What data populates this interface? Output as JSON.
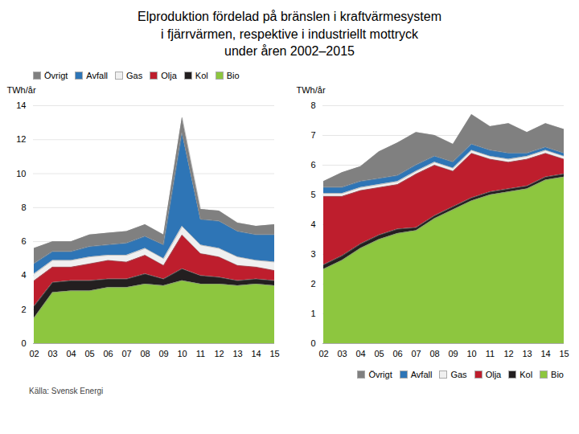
{
  "chart_data": [
    {
      "type": "area",
      "title": "Elproduktion fördelad på bränslen i kraftvärmesystem\ni fjärrvärmen, respektive i industriellt mottryck\nunder åren 2002–2015",
      "annotations": [
        "Källa: Svensk Energi"
      ],
      "y_label": "TWh/år",
      "categories": [
        "02",
        "03",
        "04",
        "05",
        "06",
        "07",
        "08",
        "09",
        "10",
        "11",
        "12",
        "13",
        "14",
        "15"
      ],
      "series": [
        {
          "name": "Bio",
          "color": "#8dc63f",
          "values": [
            1.5,
            3.0,
            3.1,
            3.1,
            3.3,
            3.3,
            3.5,
            3.4,
            3.7,
            3.5,
            3.5,
            3.4,
            3.5,
            3.4
          ]
        },
        {
          "name": "Kol",
          "color": "#231f20",
          "values": [
            0.7,
            0.6,
            0.6,
            0.6,
            0.5,
            0.5,
            0.6,
            0.4,
            0.7,
            0.5,
            0.4,
            0.3,
            0.3,
            0.3
          ]
        },
        {
          "name": "Olja",
          "color": "#be1e2d",
          "values": [
            1.5,
            0.9,
            0.8,
            1.0,
            1.1,
            1.0,
            1.1,
            0.8,
            2.0,
            1.3,
            1.2,
            0.9,
            0.7,
            0.6
          ]
        },
        {
          "name": "Gas",
          "color": "#f0f0f0",
          "values": [
            0.4,
            0.4,
            0.4,
            0.4,
            0.3,
            0.4,
            0.4,
            0.4,
            0.5,
            0.5,
            0.5,
            0.5,
            0.4,
            0.5
          ]
        },
        {
          "name": "Avfall",
          "color": "#2e75b6",
          "values": [
            0.6,
            0.5,
            0.5,
            0.6,
            0.6,
            0.7,
            0.7,
            0.8,
            5.5,
            1.5,
            1.6,
            1.5,
            1.5,
            1.6
          ]
        },
        {
          "name": "Övrigt",
          "color": "#808080",
          "values": [
            0.9,
            0.6,
            0.6,
            0.7,
            0.7,
            0.7,
            0.7,
            0.6,
            0.9,
            0.6,
            0.6,
            0.5,
            0.5,
            0.6
          ]
        }
      ],
      "ylim": [
        0,
        14
      ],
      "yticks": [
        0,
        2,
        4,
        6,
        8,
        10,
        12,
        14
      ],
      "stacked": true,
      "grid": "y",
      "legend": "upper left"
    },
    {
      "type": "area",
      "y_label": "TWh/år",
      "categories": [
        "02",
        "03",
        "04",
        "05",
        "06",
        "07",
        "08",
        "09",
        "10",
        "11",
        "12",
        "13",
        "14",
        "15"
      ],
      "series": [
        {
          "name": "Bio",
          "color": "#8dc63f",
          "values": [
            2.5,
            2.8,
            3.2,
            3.5,
            3.7,
            3.8,
            4.2,
            4.5,
            4.8,
            5.0,
            5.1,
            5.2,
            5.5,
            5.6
          ]
        },
        {
          "name": "Kol",
          "color": "#231f20",
          "values": [
            0.15,
            0.15,
            0.15,
            0.15,
            0.15,
            0.1,
            0.1,
            0.1,
            0.1,
            0.1,
            0.1,
            0.1,
            0.1,
            0.1
          ]
        },
        {
          "name": "Olja",
          "color": "#be1e2d",
          "values": [
            2.3,
            2.0,
            1.8,
            1.6,
            1.5,
            1.8,
            1.7,
            1.2,
            1.5,
            1.1,
            0.9,
            0.9,
            0.8,
            0.5
          ]
        },
        {
          "name": "Gas",
          "color": "#f0f0f0",
          "values": [
            0.1,
            0.1,
            0.1,
            0.1,
            0.1,
            0.1,
            0.1,
            0.1,
            0.1,
            0.1,
            0.1,
            0.1,
            0.1,
            0.1
          ]
        },
        {
          "name": "Avfall",
          "color": "#2e75b6",
          "values": [
            0.2,
            0.2,
            0.2,
            0.2,
            0.2,
            0.2,
            0.2,
            0.2,
            0.2,
            0.2,
            0.2,
            0.1,
            0.1,
            0.1
          ]
        },
        {
          "name": "Övrigt",
          "color": "#808080",
          "values": [
            0.2,
            0.5,
            0.5,
            0.9,
            1.1,
            1.1,
            0.7,
            0.6,
            1.0,
            0.8,
            1.0,
            0.7,
            0.8,
            0.8
          ]
        }
      ],
      "ylim": [
        0,
        8
      ],
      "yticks": [
        0,
        1,
        2,
        3,
        4,
        5,
        6,
        7,
        8
      ],
      "stacked": true,
      "grid": "y",
      "legend": "lower right"
    }
  ]
}
